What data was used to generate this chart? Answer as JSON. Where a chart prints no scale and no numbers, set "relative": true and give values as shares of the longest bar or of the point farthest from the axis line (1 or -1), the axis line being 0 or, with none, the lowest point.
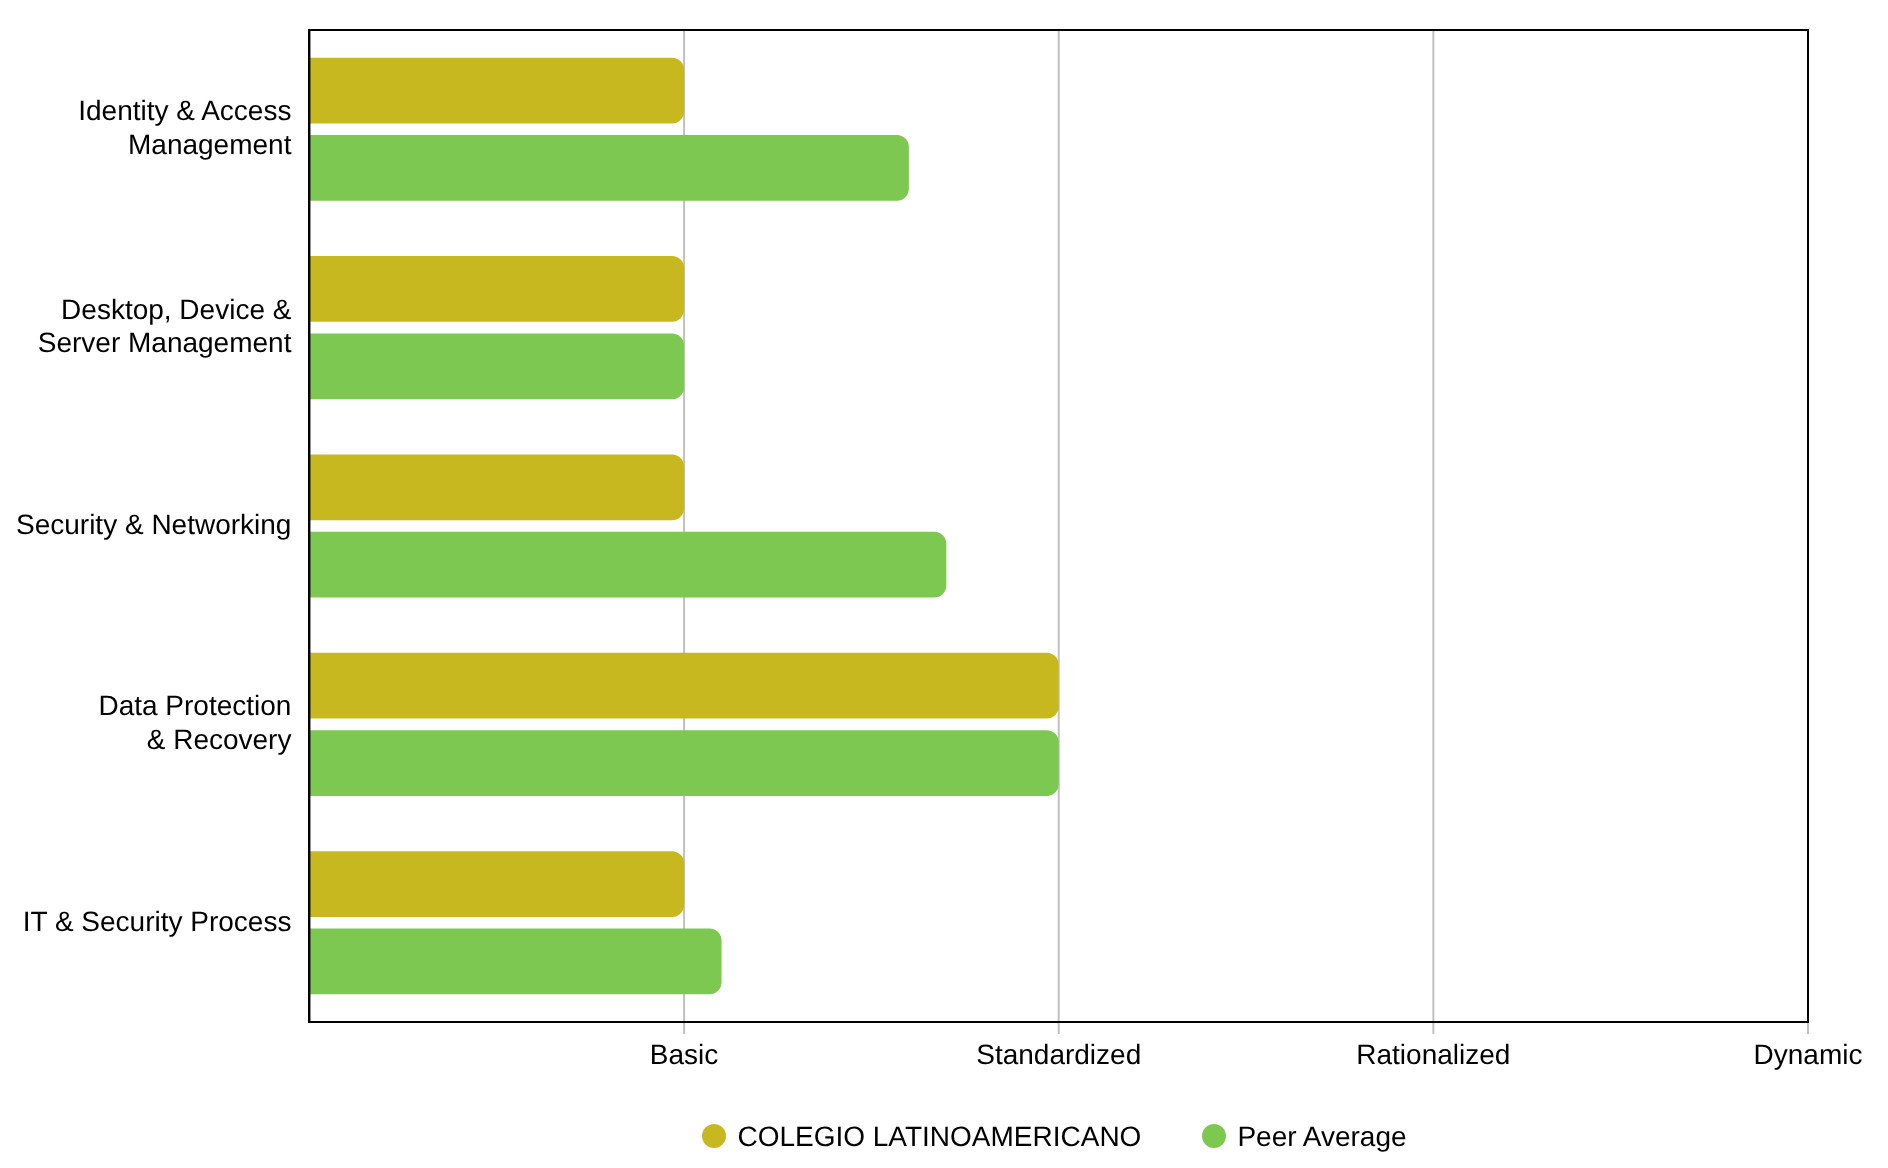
{
  "chart_data": {
    "type": "bar",
    "orientation": "horizontal",
    "relative": true,
    "categories": [
      "Identity & Access Management",
      "Desktop, Device & Server Management",
      "Security & Networking",
      "Data Protection & Recovery",
      "IT & Security Process"
    ],
    "series": [
      {
        "name": "COLEGIO LATINOAMERICANO",
        "color": "#c8b820",
        "values": [
          0.5,
          0.5,
          0.5,
          1,
          0.5
        ]
      },
      {
        "name": "Peer Average",
        "color": "#7cc850",
        "values": [
          0.8,
          0.5,
          0.85,
          1,
          0.55
        ]
      }
    ],
    "ref_lines": [
      {
        "axis": "x",
        "value": 0.5,
        "label": "Basic",
        "color": "#c0c0c0"
      },
      {
        "axis": "x",
        "value": 1,
        "label": "Standardized",
        "color": "#c0c0c0"
      },
      {
        "axis": "x",
        "value": 1.5,
        "label": "Rationalized",
        "color": "#c0c0c0"
      },
      {
        "axis": "x",
        "value": 2,
        "label": "Dynamic",
        "color": "#c0c0c0"
      }
    ],
    "legend": "bottom"
  }
}
